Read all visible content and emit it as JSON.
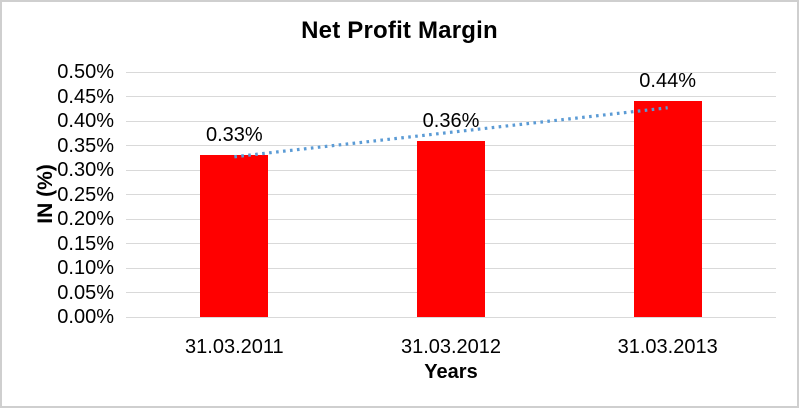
{
  "chart_data": {
    "type": "bar",
    "title": "Net Profit Margin",
    "xlabel": "Years",
    "ylabel": "IN (%)",
    "categories": [
      "31.03.2011",
      "31.03.2012",
      "31.03.2013"
    ],
    "values": [
      0.33,
      0.36,
      0.44
    ],
    "value_labels": [
      "0.33%",
      "0.36%",
      "0.44%"
    ],
    "unit": "percent",
    "ylim": [
      0,
      0.5
    ],
    "y_tick_step": 0.05,
    "y_ticks": [
      {
        "value": 0.0,
        "label": "0.00%"
      },
      {
        "value": 0.05,
        "label": "0.05%"
      },
      {
        "value": 0.1,
        "label": "0.10%"
      },
      {
        "value": 0.15,
        "label": "0.15%"
      },
      {
        "value": 0.2,
        "label": "0.20%"
      },
      {
        "value": 0.25,
        "label": "0.25%"
      },
      {
        "value": 0.3,
        "label": "0.30%"
      },
      {
        "value": 0.35,
        "label": "0.35%"
      },
      {
        "value": 0.4,
        "label": "0.40%"
      },
      {
        "value": 0.45,
        "label": "0.45%"
      },
      {
        "value": 0.5,
        "label": "0.50%"
      }
    ],
    "grid": true,
    "legend": null,
    "colors": {
      "bar": "#FF0000",
      "gridline": "#D9D9D9",
      "text": "#000000",
      "trendline": "#5B9BD5",
      "frame_border": "#CFCFCF",
      "background": "#FFFFFF"
    },
    "trendline": {
      "type": "linear",
      "style": "dotted",
      "start_value": 0.327,
      "end_value": 0.427
    }
  }
}
